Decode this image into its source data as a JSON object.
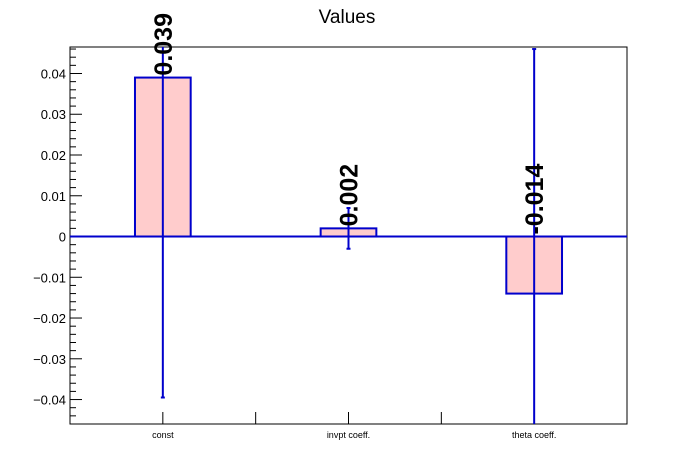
{
  "chart_data": {
    "type": "bar",
    "title": "Values",
    "xlabel": "",
    "ylabel": "",
    "categories": [
      "const",
      "invpt coeff.",
      "theta coeff."
    ],
    "values": [
      0.039,
      0.002,
      -0.014
    ],
    "value_labels": [
      "0.039",
      "0.002",
      "-0.014"
    ],
    "errors": [
      0.0785,
      0.005,
      0.06
    ],
    "ylim": [
      -0.046,
      0.0465
    ],
    "yticks": [
      -0.04,
      -0.03,
      -0.02,
      -0.01,
      0,
      0.01,
      0.02,
      0.03,
      0.04
    ],
    "ytick_labels": [
      "−0.04",
      "−0.03",
      "−0.02",
      "−0.01",
      "0",
      "0.01",
      "0.02",
      "0.03",
      "0.04"
    ],
    "grid": false,
    "legend": "none",
    "colors": {
      "bar_fill": "#ffcccc",
      "bar_edge": "#0000cc",
      "error_bar": "#0000cc",
      "zero_line": "#0000cc",
      "axis": "#000000"
    }
  }
}
